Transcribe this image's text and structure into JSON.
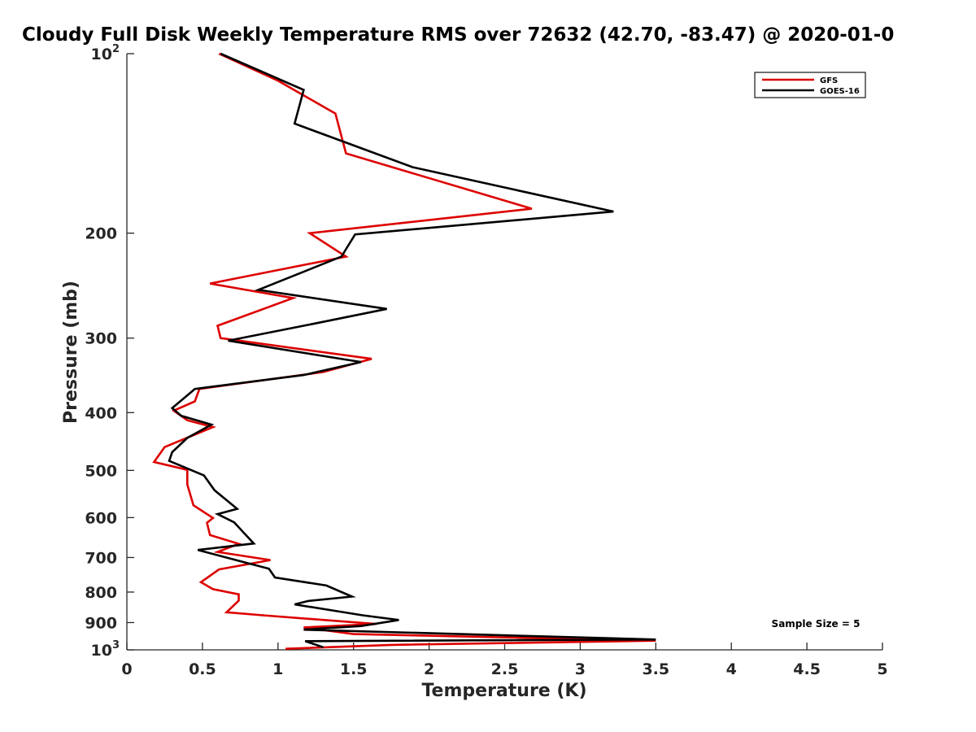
{
  "chart_data": {
    "type": "line",
    "title": "Cloudy Full Disk Weekly Temperature RMS over 72632 (42.70, -83.47) @ 2020-01-0",
    "xlabel": "Temperature (K)",
    "ylabel": "Pressure (mb)",
    "xlim": [
      0,
      5
    ],
    "ylim": [
      100,
      1000
    ],
    "y_scale": "log",
    "y_reversed": true,
    "grid": false,
    "legend_position": "top-right",
    "x_ticks": [
      "0",
      "0.5",
      "1",
      "1.5",
      "2",
      "2.5",
      "3",
      "3.5",
      "4",
      "4.5",
      "5"
    ],
    "x_tick_values": [
      0,
      0.5,
      1,
      1.5,
      2,
      2.5,
      3,
      3.5,
      4,
      4.5,
      5
    ],
    "y_ticks": [
      {
        "base": "10",
        "exp": "2",
        "value": 100
      },
      {
        "label": "200",
        "value": 200
      },
      {
        "label": "300",
        "value": 300
      },
      {
        "label": "400",
        "value": 400
      },
      {
        "label": "500",
        "value": 500
      },
      {
        "label": "600",
        "value": 600
      },
      {
        "label": "700",
        "value": 700
      },
      {
        "label": "800",
        "value": 800
      },
      {
        "label": "900",
        "value": 900
      },
      {
        "base": "10",
        "exp": "3",
        "value": 1000
      }
    ],
    "annotation": "Sample Size = 5",
    "series": [
      {
        "name": "GFS",
        "color": "#dd0000",
        "points": [
          [
            0.61,
            100
          ],
          [
            1.0,
            111
          ],
          [
            1.38,
            126
          ],
          [
            1.45,
            147
          ],
          [
            2.68,
            182
          ],
          [
            1.21,
            200
          ],
          [
            1.45,
            219
          ],
          [
            0.55,
            243
          ],
          [
            1.1,
            257
          ],
          [
            0.6,
            286
          ],
          [
            0.62,
            300
          ],
          [
            1.62,
            325
          ],
          [
            1.3,
            342
          ],
          [
            0.48,
            365
          ],
          [
            0.45,
            383
          ],
          [
            0.31,
            397
          ],
          [
            0.4,
            412
          ],
          [
            0.57,
            423
          ],
          [
            0.25,
            457
          ],
          [
            0.18,
            484
          ],
          [
            0.4,
            499
          ],
          [
            0.4,
            528
          ],
          [
            0.44,
            572
          ],
          [
            0.57,
            601
          ],
          [
            0.53,
            612
          ],
          [
            0.55,
            642
          ],
          [
            0.74,
            664
          ],
          [
            0.6,
            685
          ],
          [
            0.95,
            707
          ],
          [
            0.61,
            733
          ],
          [
            0.49,
            770
          ],
          [
            0.57,
            791
          ],
          [
            0.74,
            807
          ],
          [
            0.74,
            827
          ],
          [
            0.66,
            865
          ],
          [
            0.9,
            875
          ],
          [
            1.65,
            905
          ],
          [
            1.17,
            917
          ],
          [
            1.5,
            941
          ],
          [
            3.5,
            965
          ],
          [
            1.75,
            981
          ],
          [
            1.05,
            996
          ]
        ]
      },
      {
        "name": "GOES-16",
        "color": "#000000",
        "points": [
          [
            0.62,
            100
          ],
          [
            1.17,
            115
          ],
          [
            1.11,
            131
          ],
          [
            1.89,
            155
          ],
          [
            3.22,
            184
          ],
          [
            1.51,
            201
          ],
          [
            1.42,
            219
          ],
          [
            0.87,
            249
          ],
          [
            1.72,
            268
          ],
          [
            1.2,
            285
          ],
          [
            0.67,
            303
          ],
          [
            1.55,
            329
          ],
          [
            1.17,
            346
          ],
          [
            0.45,
            365
          ],
          [
            0.3,
            393
          ],
          [
            0.36,
            405
          ],
          [
            0.56,
            419
          ],
          [
            0.4,
            441
          ],
          [
            0.3,
            466
          ],
          [
            0.28,
            482
          ],
          [
            0.51,
            510
          ],
          [
            0.58,
            540
          ],
          [
            0.73,
            580
          ],
          [
            0.6,
            592
          ],
          [
            0.71,
            611
          ],
          [
            0.77,
            635
          ],
          [
            0.84,
            663
          ],
          [
            0.47,
            680
          ],
          [
            0.75,
            710
          ],
          [
            0.94,
            731
          ],
          [
            0.98,
            756
          ],
          [
            1.32,
            780
          ],
          [
            1.49,
            814
          ],
          [
            1.2,
            828
          ],
          [
            1.11,
            839
          ],
          [
            1.56,
            875
          ],
          [
            1.8,
            891
          ],
          [
            1.55,
            912
          ],
          [
            1.17,
            925
          ],
          [
            3.5,
            961
          ],
          [
            1.18,
            967
          ],
          [
            1.3,
            990
          ]
        ]
      }
    ]
  }
}
